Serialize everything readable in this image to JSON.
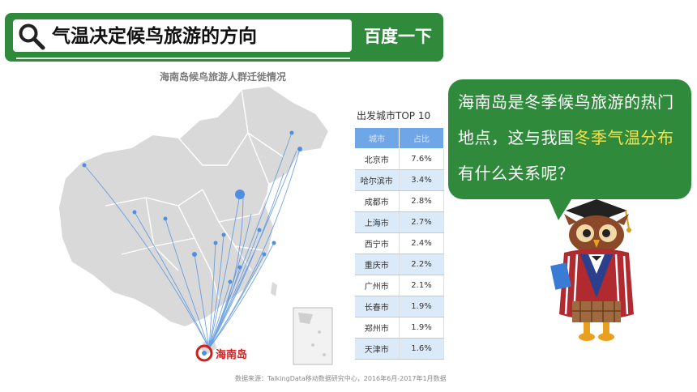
{
  "search": {
    "query": "气温决定候鸟旅游的方向",
    "button_label": "百度一下"
  },
  "figure": {
    "title": "海南岛候鸟旅游人群迁徙情况",
    "destination_label": "海南岛",
    "source": "数据来源：TalkingData移动数据研究中心，2016年6月-2017年1月数据"
  },
  "table": {
    "title": "出发城市TOP 10",
    "headers": [
      "城市",
      "占比"
    ],
    "rows": [
      {
        "city": "北京市",
        "share": "7.6%"
      },
      {
        "city": "哈尔滨市",
        "share": "3.4%"
      },
      {
        "city": "成都市",
        "share": "2.8%"
      },
      {
        "city": "上海市",
        "share": "2.7%"
      },
      {
        "city": "西宁市",
        "share": "2.4%"
      },
      {
        "city": "重庆市",
        "share": "2.2%"
      },
      {
        "city": "广州市",
        "share": "2.1%"
      },
      {
        "city": "长春市",
        "share": "1.9%"
      },
      {
        "city": "郑州市",
        "share": "1.9%"
      },
      {
        "city": "天津市",
        "share": "1.6%"
      }
    ]
  },
  "bubble": {
    "part1": "海南岛是冬季候鸟旅游的热门地点，这与我国",
    "highlight": "冬季气温分布",
    "part2": "有什么关系呢？"
  },
  "colors": {
    "green": "#2f8a3c",
    "highlight": "#f6e14b",
    "route_blue": "#4f8fe0",
    "map_gray": "#d9d9d9",
    "target_red": "#d01f1f"
  }
}
